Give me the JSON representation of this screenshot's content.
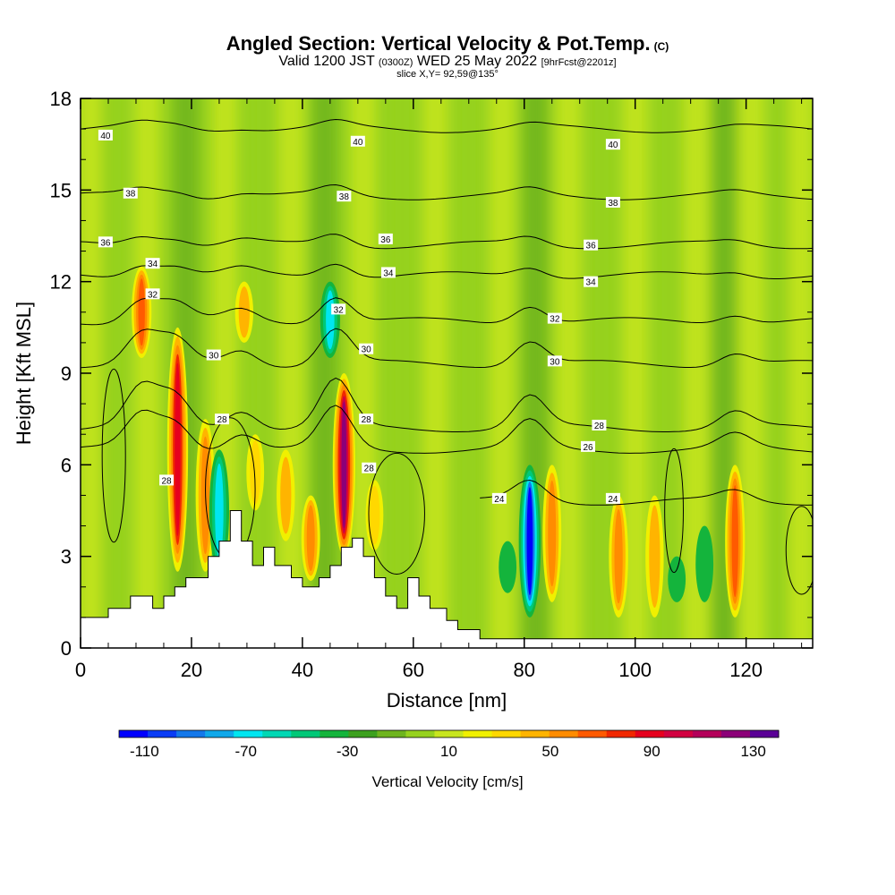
{
  "title": {
    "main": "Angled Section: Vertical Velocity & Pot.Temp.",
    "main_suffix": "(C)",
    "valid_prefix": "Valid 1200 JST",
    "valid_zulu": "(0300Z)",
    "valid_date": "WED 25 May 2022",
    "forecast": "[9hrFcst@2201z]",
    "slice": "slice X,Y= 92,59@135°"
  },
  "chart_data": {
    "type": "heatmap",
    "xlabel": "Distance [nm]",
    "ylabel": "Height [Kft MSL]",
    "xlim": [
      0,
      132
    ],
    "ylim": [
      0,
      18
    ],
    "x_ticks": [
      0,
      20,
      40,
      60,
      80,
      100,
      120
    ],
    "y_ticks": [
      0,
      3,
      6,
      9,
      12,
      15,
      18
    ],
    "colorbar": {
      "label": "Vertical Velocity [cm/s]",
      "tick_values": [
        -110,
        -70,
        -30,
        10,
        50,
        90,
        130
      ],
      "range": [
        -120,
        140
      ],
      "colors": [
        "#0000ff",
        "#0a3cf5",
        "#1478ea",
        "#10a8ea",
        "#00e6f0",
        "#00d8b4",
        "#00c878",
        "#14b43c",
        "#3ca01e",
        "#6eb41e",
        "#96d21e",
        "#c8e61e",
        "#f0f000",
        "#ffd800",
        "#ffb400",
        "#ff8c00",
        "#ff5a00",
        "#f02800",
        "#e6001e",
        "#d20041",
        "#b4005a",
        "#8c0078",
        "#5a0096"
      ]
    },
    "wind_velocity_features": [
      {
        "x": 11,
        "ytop": 12.5,
        "ybot": 9.5,
        "value": 70
      },
      {
        "x": 17.5,
        "ytop": 10.5,
        "ybot": 2.5,
        "value": 90
      },
      {
        "x": 22.5,
        "ytop": 7.5,
        "ybot": 2.5,
        "value": 60
      },
      {
        "x": 25,
        "ytop": 6.5,
        "ybot": 2.5,
        "value": -70
      },
      {
        "x": 29.5,
        "ytop": 12,
        "ybot": 10,
        "value": 40
      },
      {
        "x": 31.5,
        "ytop": 7,
        "ybot": 4.5,
        "value": 30
      },
      {
        "x": 37,
        "ytop": 6.5,
        "ybot": 3.5,
        "value": 40
      },
      {
        "x": 41.5,
        "ytop": 5,
        "ybot": 2.2,
        "value": 50
      },
      {
        "x": 45,
        "ytop": 12,
        "ybot": 9.5,
        "value": -70
      },
      {
        "x": 47.5,
        "ytop": 9,
        "ybot": 3,
        "value": 120
      },
      {
        "x": 53,
        "ytop": 5.5,
        "ybot": 3.2,
        "value": 30
      },
      {
        "x": 77,
        "ytop": 3.5,
        "ybot": 1.8,
        "value": -30
      },
      {
        "x": 81,
        "ytop": 6,
        "ybot": 1,
        "value": -110
      },
      {
        "x": 85,
        "ytop": 6,
        "ybot": 1.5,
        "value": 50
      },
      {
        "x": 97,
        "ytop": 5,
        "ybot": 1,
        "value": 60
      },
      {
        "x": 103.5,
        "ytop": 5,
        "ybot": 1,
        "value": 40
      },
      {
        "x": 107.5,
        "ytop": 3,
        "ybot": 1.5,
        "value": -30
      },
      {
        "x": 112.5,
        "ytop": 4,
        "ybot": 1.5,
        "value": -30
      },
      {
        "x": 118,
        "ytop": 6,
        "ybot": 1,
        "value": 70
      }
    ],
    "terrain": {
      "x": [
        0,
        5,
        5,
        9,
        9,
        13,
        13,
        15,
        15,
        17,
        17,
        19,
        19,
        23,
        23,
        25,
        25,
        27,
        27,
        29,
        29,
        31,
        31,
        33,
        33,
        35,
        35,
        38,
        38,
        40,
        40,
        43,
        43,
        45,
        45,
        47,
        47,
        49,
        49,
        51,
        51,
        53,
        53,
        55,
        55,
        57,
        57,
        59,
        59,
        61,
        61,
        63,
        63,
        66,
        66,
        68,
        68,
        72,
        72,
        132
      ],
      "y": [
        1.0,
        1.0,
        1.3,
        1.3,
        1.7,
        1.7,
        1.3,
        1.3,
        1.7,
        1.7,
        2.0,
        2.0,
        2.3,
        2.3,
        3.0,
        3.0,
        3.5,
        3.5,
        4.5,
        4.5,
        3.5,
        3.5,
        2.7,
        2.7,
        3.3,
        3.3,
        2.7,
        2.7,
        2.3,
        2.3,
        2.0,
        2.0,
        2.3,
        2.3,
        2.7,
        2.7,
        3.3,
        3.3,
        3.6,
        3.6,
        3.0,
        3.0,
        2.3,
        2.3,
        1.7,
        1.7,
        1.3,
        1.3,
        2.3,
        2.3,
        1.7,
        1.7,
        1.3,
        1.3,
        0.9,
        0.9,
        0.6,
        0.6,
        0.3,
        0.3
      ]
    },
    "isentropes": [
      {
        "label": "40",
        "y": 17.0,
        "anomaly": 0.2
      },
      {
        "label": "38",
        "y": 14.8,
        "anomaly": 0.3
      },
      {
        "label": "36",
        "y": 13.2,
        "anomaly": 0.4
      },
      {
        "label": "34",
        "y": 12.2,
        "anomaly": 0.5
      },
      {
        "label": "32",
        "y": 10.7,
        "anomaly": 0.9
      },
      {
        "label": "30",
        "y": 9.3,
        "anomaly": 1.2
      },
      {
        "label": "28",
        "y": 7.2,
        "anomaly": 1.6
      },
      {
        "label": "26",
        "y": 6.5,
        "anomaly": 1.4
      },
      {
        "label": "24",
        "y": 4.8,
        "anomaly": 1.0
      }
    ],
    "contour_labels": [
      {
        "text": "40",
        "x": 4.5,
        "y": 16.8
      },
      {
        "text": "40",
        "x": 50,
        "y": 16.6
      },
      {
        "text": "40",
        "x": 96,
        "y": 16.5
      },
      {
        "text": "38",
        "x": 9,
        "y": 14.9
      },
      {
        "text": "38",
        "x": 47.5,
        "y": 14.8
      },
      {
        "text": "38",
        "x": 96,
        "y": 14.6
      },
      {
        "text": "36",
        "x": 4.5,
        "y": 13.3
      },
      {
        "text": "36",
        "x": 55,
        "y": 13.4
      },
      {
        "text": "36",
        "x": 92,
        "y": 13.2
      },
      {
        "text": "34",
        "x": 13,
        "y": 12.6
      },
      {
        "text": "34",
        "x": 55.5,
        "y": 12.3
      },
      {
        "text": "34",
        "x": 92,
        "y": 12.0
      },
      {
        "text": "32",
        "x": 13,
        "y": 11.6
      },
      {
        "text": "32",
        "x": 46.5,
        "y": 11.1
      },
      {
        "text": "32",
        "x": 85.5,
        "y": 10.8
      },
      {
        "text": "30",
        "x": 24,
        "y": 9.6
      },
      {
        "text": "30",
        "x": 51.5,
        "y": 9.8
      },
      {
        "text": "30",
        "x": 85.5,
        "y": 9.4
      },
      {
        "text": "28",
        "x": 25.5,
        "y": 7.5
      },
      {
        "text": "28",
        "x": 51.5,
        "y": 7.5
      },
      {
        "text": "28",
        "x": 93.5,
        "y": 7.3
      },
      {
        "text": "28",
        "x": 15.5,
        "y": 5.5
      },
      {
        "text": "28",
        "x": 52,
        "y": 5.9
      },
      {
        "text": "26",
        "x": 91.5,
        "y": 6.6
      },
      {
        "text": "24",
        "x": 75.5,
        "y": 4.9
      },
      {
        "text": "24",
        "x": 96,
        "y": 4.9
      }
    ]
  }
}
